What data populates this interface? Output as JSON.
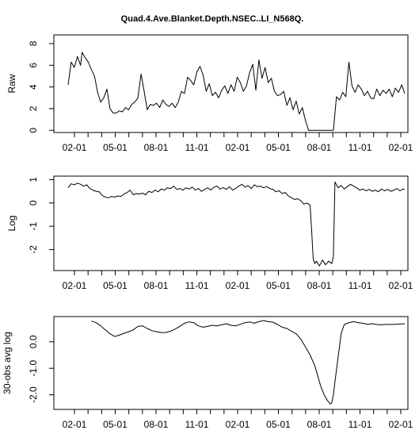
{
  "chart_data": {
    "type": "line",
    "title": "Quad.4.Ave.Blanket.Depth.NSEC..LI_N568Q.",
    "line_color": "#000000",
    "x_ticks": [
      "02-01",
      "05-01",
      "08-01",
      "11-01",
      "02-01",
      "05-01",
      "08-01",
      "11-01",
      "02-01"
    ],
    "panels": [
      {
        "ylabel": "Raw",
        "ylim": [
          -0.2,
          8.8
        ],
        "yticks": [
          0,
          2,
          4,
          6,
          8
        ],
        "ytick_labels": [
          "0",
          "2",
          "4",
          "6",
          "8"
        ],
        "series": {
          "x": [
            0,
            4,
            8,
            12,
            16,
            18,
            22,
            26,
            30,
            34,
            38,
            42,
            46,
            50,
            54,
            58,
            62,
            66,
            70,
            74,
            78,
            82,
            86,
            90,
            94,
            98,
            102,
            106,
            110,
            114,
            118,
            122,
            126,
            130,
            134,
            138,
            142,
            146,
            150,
            154,
            158,
            162,
            166,
            170,
            174,
            178,
            182,
            186,
            190,
            194,
            198,
            202,
            206,
            210,
            214,
            218,
            222,
            226,
            230,
            234,
            238,
            242,
            246,
            250,
            254,
            258,
            262,
            266,
            270,
            274,
            278,
            282,
            286,
            290,
            294,
            298,
            302,
            306,
            310,
            314,
            318,
            322,
            326,
            330,
            334,
            338,
            342,
            346,
            350,
            354,
            358,
            362,
            366,
            370,
            374,
            378,
            382,
            386,
            390,
            394,
            398,
            402,
            406,
            410,
            414,
            418,
            422,
            426,
            430,
            434
          ],
          "y": [
            4.2,
            6.3,
            5.8,
            6.8,
            6.0,
            7.2,
            6.7,
            6.3,
            5.6,
            5.0,
            3.5,
            2.6,
            3.0,
            3.8,
            2.0,
            1.6,
            1.6,
            1.8,
            1.7,
            2.1,
            1.9,
            2.4,
            2.6,
            3.0,
            5.2,
            3.6,
            1.9,
            2.4,
            2.3,
            2.5,
            2.1,
            2.8,
            2.4,
            2.2,
            2.5,
            2.1,
            2.6,
            3.6,
            3.4,
            4.9,
            4.6,
            4.2,
            5.4,
            5.9,
            5.1,
            3.6,
            4.3,
            3.2,
            3.5,
            3.0,
            3.7,
            4.1,
            3.4,
            4.2,
            3.6,
            4.9,
            4.4,
            3.6,
            4.1,
            5.3,
            6.1,
            3.7,
            6.5,
            4.8,
            5.8,
            4.4,
            4.8,
            3.6,
            3.2,
            3.3,
            3.6,
            2.3,
            3.0,
            1.9,
            2.7,
            1.5,
            2.1,
            0.9,
            0.0,
            0.0,
            0.0,
            0.0,
            0.0,
            0.0,
            0.0,
            0.0,
            0.0,
            3.1,
            2.8,
            3.5,
            3.1,
            6.3,
            4.1,
            3.5,
            4.2,
            3.8,
            3.2,
            3.6,
            3.0,
            2.9,
            3.8,
            3.2,
            3.7,
            3.4,
            3.8,
            3.1,
            3.9,
            3.5,
            4.2,
            3.4
          ]
        }
      },
      {
        "ylabel": "Log",
        "ylim": [
          -2.9,
          1.15
        ],
        "yticks": [
          -2,
          -1,
          0,
          1
        ],
        "ytick_labels": [
          "-2",
          "-1",
          "0",
          "1"
        ],
        "series": {
          "x": [
            0,
            4,
            8,
            12,
            16,
            20,
            24,
            28,
            32,
            36,
            40,
            44,
            48,
            52,
            56,
            60,
            64,
            68,
            72,
            76,
            80,
            84,
            88,
            92,
            96,
            100,
            104,
            108,
            112,
            116,
            120,
            124,
            128,
            132,
            136,
            140,
            144,
            148,
            152,
            156,
            160,
            164,
            168,
            172,
            176,
            180,
            184,
            188,
            192,
            196,
            200,
            204,
            208,
            212,
            216,
            220,
            224,
            228,
            232,
            236,
            240,
            244,
            248,
            252,
            256,
            260,
            264,
            268,
            272,
            276,
            280,
            284,
            288,
            292,
            296,
            300,
            304,
            308,
            312,
            314,
            316,
            318,
            320,
            324,
            328,
            332,
            336,
            340,
            342,
            344,
            348,
            352,
            356,
            360,
            364,
            368,
            372,
            376,
            380,
            384,
            388,
            392,
            396,
            400,
            404,
            408,
            412,
            416,
            420,
            424,
            428,
            432,
            434
          ],
          "y": [
            0.65,
            0.82,
            0.78,
            0.85,
            0.8,
            0.72,
            0.78,
            0.62,
            0.55,
            0.5,
            0.48,
            0.32,
            0.25,
            0.22,
            0.28,
            0.25,
            0.3,
            0.28,
            0.38,
            0.45,
            0.55,
            0.35,
            0.4,
            0.38,
            0.42,
            0.35,
            0.5,
            0.45,
            0.55,
            0.48,
            0.6,
            0.55,
            0.65,
            0.62,
            0.72,
            0.58,
            0.62,
            0.55,
            0.65,
            0.6,
            0.68,
            0.55,
            0.62,
            0.5,
            0.58,
            0.65,
            0.55,
            0.68,
            0.72,
            0.6,
            0.66,
            0.58,
            0.7,
            0.55,
            0.62,
            0.72,
            0.8,
            0.68,
            0.75,
            0.62,
            0.78,
            0.7,
            0.72,
            0.65,
            0.7,
            0.62,
            0.58,
            0.48,
            0.52,
            0.4,
            0.45,
            0.3,
            0.22,
            0.15,
            0.18,
            0.1,
            -0.05,
            0.0,
            -0.1,
            -1.2,
            -2.4,
            -2.6,
            -2.5,
            -2.7,
            -2.45,
            -2.65,
            -2.5,
            -2.6,
            -2.3,
            0.9,
            0.65,
            0.75,
            0.6,
            0.7,
            0.8,
            0.72,
            0.65,
            0.55,
            0.6,
            0.52,
            0.58,
            0.5,
            0.55,
            0.48,
            0.6,
            0.52,
            0.58,
            0.5,
            0.55,
            0.62,
            0.52,
            0.6,
            0.58
          ]
        }
      },
      {
        "ylabel": "30-obs avg log",
        "ylim": [
          -2.55,
          0.95
        ],
        "yticks": [
          -2.0,
          -1.0,
          0.0
        ],
        "ytick_labels": [
          "-2.0",
          "-1.0",
          "0.0"
        ],
        "series": {
          "x": [
            30,
            36,
            42,
            48,
            54,
            60,
            66,
            72,
            78,
            84,
            90,
            96,
            102,
            108,
            114,
            120,
            126,
            132,
            138,
            144,
            150,
            156,
            162,
            168,
            174,
            180,
            186,
            192,
            198,
            204,
            210,
            216,
            222,
            228,
            234,
            240,
            246,
            252,
            258,
            264,
            270,
            276,
            282,
            288,
            294,
            300,
            306,
            312,
            318,
            322,
            326,
            330,
            334,
            338,
            340,
            342,
            344,
            348,
            352,
            356,
            362,
            368,
            374,
            380,
            386,
            392,
            398,
            404,
            410,
            416,
            422,
            428,
            434
          ],
          "y": [
            0.78,
            0.72,
            0.6,
            0.45,
            0.3,
            0.2,
            0.25,
            0.32,
            0.38,
            0.45,
            0.58,
            0.6,
            0.5,
            0.42,
            0.38,
            0.35,
            0.35,
            0.4,
            0.48,
            0.58,
            0.7,
            0.75,
            0.72,
            0.6,
            0.55,
            0.58,
            0.62,
            0.6,
            0.64,
            0.68,
            0.62,
            0.6,
            0.66,
            0.72,
            0.75,
            0.7,
            0.76,
            0.8,
            0.76,
            0.74,
            0.65,
            0.55,
            0.5,
            0.4,
            0.3,
            0.1,
            -0.2,
            -0.5,
            -0.9,
            -1.3,
            -1.7,
            -2.0,
            -2.2,
            -2.35,
            -2.3,
            -2.0,
            -1.5,
            -0.6,
            0.3,
            0.65,
            0.72,
            0.76,
            0.72,
            0.7,
            0.66,
            0.68,
            0.65,
            0.64,
            0.66,
            0.65,
            0.66,
            0.67,
            0.68
          ]
        }
      }
    ]
  }
}
